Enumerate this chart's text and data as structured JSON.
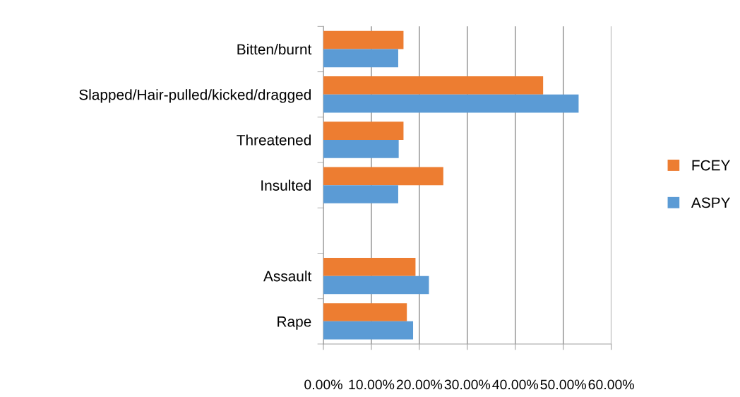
{
  "chart_data": {
    "type": "bar",
    "orientation": "horizontal",
    "categories": [
      "Bitten/burnt",
      "Slapped/Hair-pulled/kicked/dragged",
      "Threatened",
      "Insulted",
      null,
      "Assault",
      "Rape"
    ],
    "series": [
      {
        "name": "FCEY",
        "color": "#ed7d31",
        "values": [
          16.7,
          45.8,
          16.7,
          25.0,
          null,
          19.2,
          17.4
        ]
      },
      {
        "name": "ASPY",
        "color": "#5b9bd5",
        "values": [
          15.6,
          53.2,
          15.7,
          15.6,
          null,
          22.0,
          18.7
        ]
      }
    ],
    "xlim": [
      0,
      60
    ],
    "xticks": [
      {
        "value": 0,
        "label": "0.00%"
      },
      {
        "value": 10,
        "label": "10.00%"
      },
      {
        "value": 20,
        "label": "20.00%"
      },
      {
        "value": 30,
        "label": "30.00%"
      },
      {
        "value": 40,
        "label": "40.00%"
      },
      {
        "value": 50,
        "label": "50.00%"
      },
      {
        "value": 60,
        "label": "60.00%"
      }
    ],
    "grid": "x",
    "legend": "right"
  }
}
